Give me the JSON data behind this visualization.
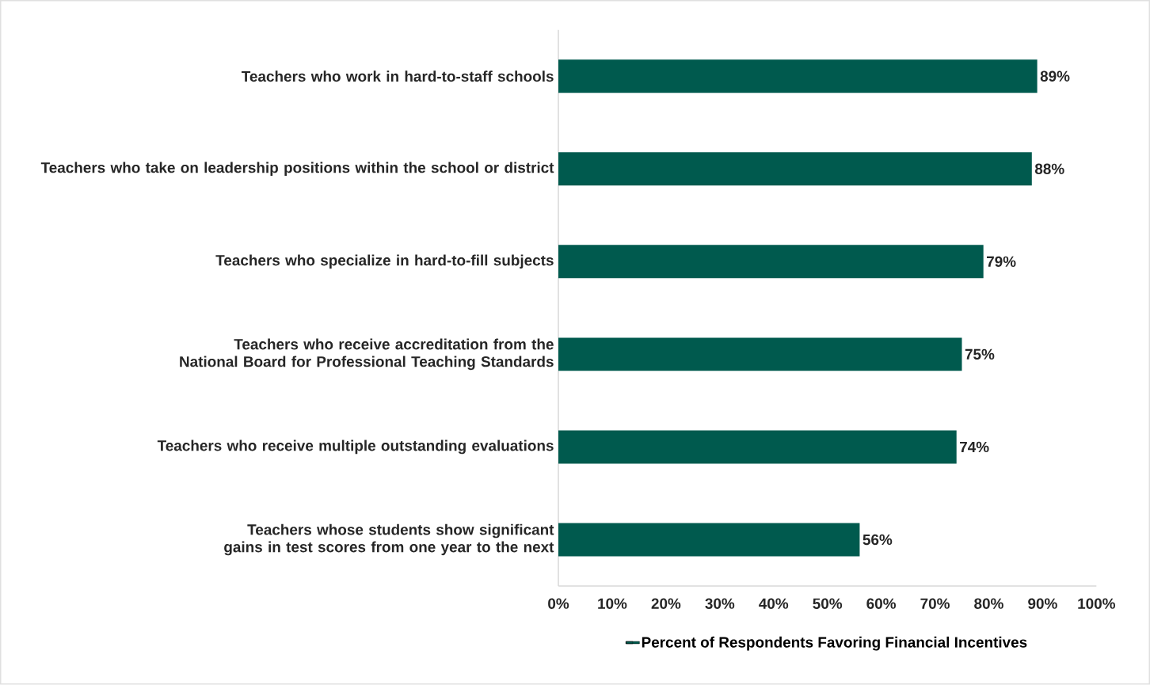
{
  "chart_data": {
    "type": "bar",
    "orientation": "horizontal",
    "categories": [
      "Teachers who work in hard-to-staff schools",
      "Teachers who take on leadership positions within the school or district",
      "Teachers who specialize in hard-to-fill subjects",
      "Teachers who receive accreditation from the National Board for Professional Teaching Standards",
      "Teachers who receive multiple outstanding evaluations",
      "Teachers whose students show significant gains in test scores from one year to the next"
    ],
    "series": [
      {
        "name": "Percent of Respondents Favoring Financial Incentives",
        "color": "#005a4e",
        "values": [
          89,
          88,
          79,
          75,
          74,
          56
        ],
        "value_labels": [
          "89%",
          "88%",
          "79%",
          "75%",
          "74%",
          "56%"
        ]
      }
    ],
    "xlim": [
      0,
      100
    ],
    "xticks": [
      {
        "value": 0,
        "label": "0%"
      },
      {
        "value": 10,
        "label": "10%"
      },
      {
        "value": 20,
        "label": "20%"
      },
      {
        "value": 30,
        "label": "30%"
      },
      {
        "value": 40,
        "label": "40%"
      },
      {
        "value": 50,
        "label": "50%"
      },
      {
        "value": 60,
        "label": "60%"
      },
      {
        "value": 70,
        "label": "70%"
      },
      {
        "value": 80,
        "label": "80%"
      },
      {
        "value": 90,
        "label": "90%"
      },
      {
        "value": 100,
        "label": "100%"
      }
    ],
    "grid": false,
    "legend": "bottom"
  }
}
